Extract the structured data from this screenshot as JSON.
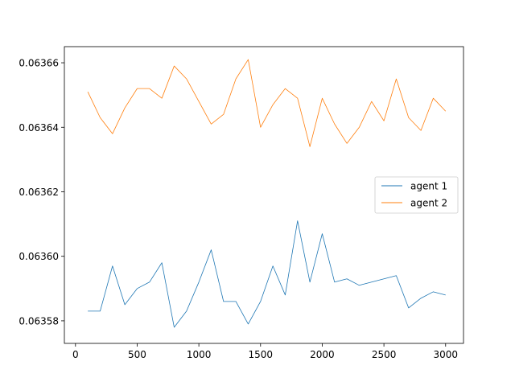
{
  "chart_data": {
    "type": "line",
    "title": "",
    "xlabel": "",
    "ylabel": "",
    "xlim": [
      -90,
      3145
    ],
    "ylim": [
      0.063573,
      0.063665
    ],
    "xticks": [
      0,
      500,
      1000,
      1500,
      2000,
      2500,
      3000
    ],
    "xtick_labels": [
      "0",
      "500",
      "1000",
      "1500",
      "2000",
      "2500",
      "3000"
    ],
    "yticks": [
      0.06358,
      0.0636,
      0.06362,
      0.06364,
      0.06366
    ],
    "ytick_labels": [
      "0.06358",
      "0.06360",
      "0.06362",
      "0.06364",
      "0.06366"
    ],
    "grid": false,
    "legend_position": "center-right",
    "x": [
      100,
      200,
      300,
      400,
      500,
      600,
      700,
      800,
      900,
      1000,
      1100,
      1200,
      1300,
      1400,
      1500,
      1600,
      1700,
      1800,
      1900,
      2000,
      2100,
      2200,
      2300,
      2400,
      2500,
      2600,
      2700,
      2800,
      2900,
      3000
    ],
    "series": [
      {
        "name": "agent 1",
        "color": "#1f77b4",
        "values": [
          0.063583,
          0.063583,
          0.063597,
          0.063585,
          0.06359,
          0.063592,
          0.063598,
          0.063578,
          0.063583,
          0.063592,
          0.063602,
          0.063586,
          0.063586,
          0.063579,
          0.063586,
          0.063597,
          0.063588,
          0.063611,
          0.063592,
          0.063607,
          0.063592,
          0.063593,
          0.063591,
          0.063592,
          0.063593,
          0.063594,
          0.063584,
          0.063587,
          0.063589,
          0.063588
        ]
      },
      {
        "name": "agent 2",
        "color": "#ff7f0e",
        "values": [
          0.063651,
          0.063643,
          0.063638,
          0.063646,
          0.063652,
          0.063652,
          0.063649,
          0.063659,
          0.063655,
          0.063648,
          0.063641,
          0.063644,
          0.063655,
          0.063661,
          0.06364,
          0.063647,
          0.063652,
          0.063649,
          0.063634,
          0.063649,
          0.063641,
          0.063635,
          0.06364,
          0.063648,
          0.063642,
          0.063655,
          0.063643,
          0.063639,
          0.063649,
          0.063645
        ]
      }
    ]
  }
}
